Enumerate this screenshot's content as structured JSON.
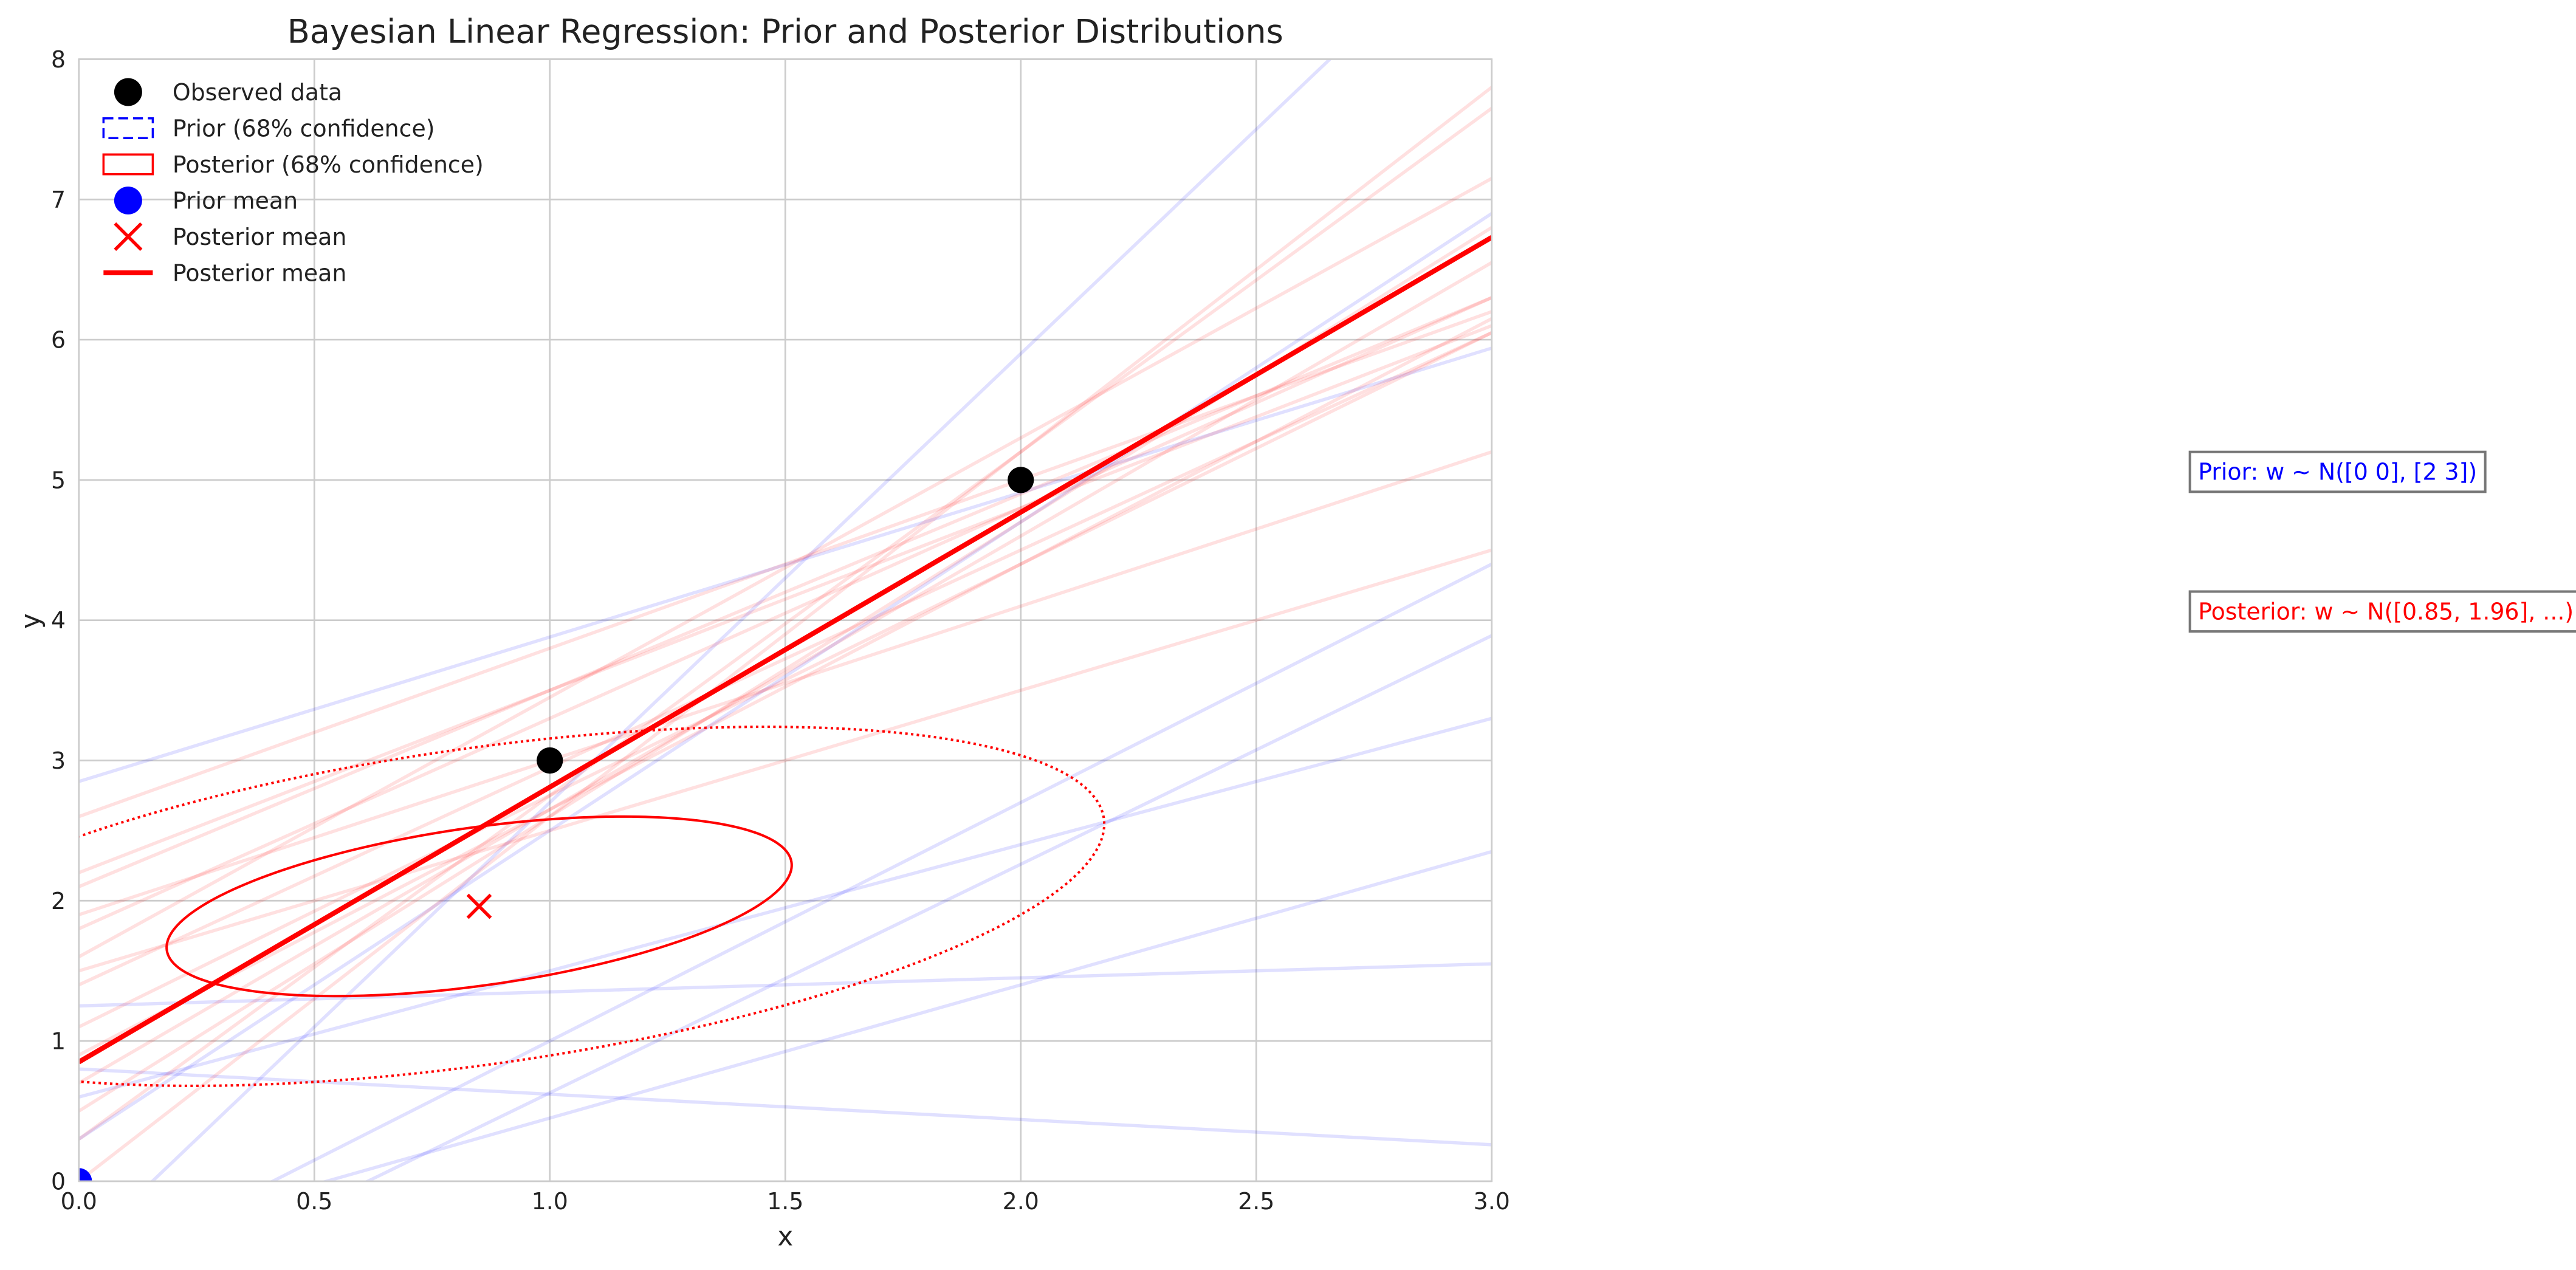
{
  "chart_data": {
    "type": "scatter",
    "title": "Bayesian Linear Regression: Prior and Posterior Distributions",
    "x_label": "x",
    "y_label": "y",
    "xlim": [
      0,
      3
    ],
    "ylim": [
      0,
      8
    ],
    "xticks": [
      {
        "value": 0,
        "label": "0.0"
      },
      {
        "value": 0.5,
        "label": "0.5"
      },
      {
        "value": 1,
        "label": "1.0"
      },
      {
        "value": 1.5,
        "label": "1.5"
      },
      {
        "value": 2,
        "label": "2.0"
      },
      {
        "value": 2.5,
        "label": "2.5"
      },
      {
        "value": 3,
        "label": "3.0"
      }
    ],
    "yticks": [
      0,
      1,
      2,
      3,
      4,
      5,
      6,
      7,
      8
    ],
    "grid": true,
    "legend": "upper left",
    "series": [
      {
        "name": "Observed data",
        "color": "#000000",
        "marker": "circle",
        "x": [
          1,
          2
        ],
        "values": [
          3,
          5
        ]
      },
      {
        "name": "Prior mean",
        "color": "#0000ff",
        "marker": "circle",
        "x": [
          0
        ],
        "values": [
          0
        ]
      },
      {
        "name": "Posterior mean",
        "color": "#ff0000",
        "marker": "x",
        "x": [
          0.85
        ],
        "values": [
          1.96
        ]
      },
      {
        "name": "Posterior mean",
        "color": "#ff0000",
        "marker": "line",
        "x": [
          0,
          3
        ],
        "values": [
          0.85,
          6.73
        ]
      }
    ],
    "ellipses": [
      {
        "name": "Prior (68% confidence)",
        "color": "#0000ff",
        "style": "dashed",
        "center": [
          0,
          0
        ],
        "cov": [
          [
            2,
            0
          ],
          [
            0,
            3
          ]
        ],
        "n_std": 1
      },
      {
        "color": "#0000ff",
        "style": "dotted",
        "center": [
          0,
          0
        ],
        "cov": [
          [
            2,
            0
          ],
          [
            0,
            3
          ]
        ],
        "n_std": 2
      },
      {
        "name": "Posterior (68% confidence)",
        "color": "#ff0000",
        "style": "solid",
        "center": [
          0.85,
          1.96
        ],
        "cov": [
          [
            1.23,
            -0.66
          ],
          [
            -0.66,
            0.47
          ]
        ],
        "n_std": 1
      },
      {
        "color": "#ff0000",
        "style": "dotted",
        "center": [
          0.85,
          1.96
        ],
        "cov": [
          [
            1.23,
            -0.66
          ],
          [
            -0.66,
            0.47
          ]
        ],
        "n_std": 2
      }
    ],
    "sample_lines": [
      {
        "color": "#0000ff",
        "intercepts": [
          2.85,
          0.8,
          -0.5,
          -1,
          1.25,
          -0.5,
          0.6,
          -0.7,
          0.3
        ],
        "slopes": [
          1.03,
          -0.18,
          3.2,
          1.63,
          0.1,
          0.95,
          0.9,
          1.7,
          2.2
        ]
      },
      {
        "color": "#ff0000",
        "intercepts": [
          1.6,
          2.6,
          0.5,
          1.4,
          0.9,
          2.2,
          0.3,
          1.1,
          1.8,
          0.0,
          1.5,
          1.9,
          0.7,
          2.1
        ],
        "slopes": [
          1.85,
          1.2,
          2.1,
          1.55,
          1.75,
          1.3,
          2.45,
          1.65,
          1.5,
          2.6,
          1.0,
          1.1,
          1.95,
          1.4
        ]
      }
    ],
    "annotations": [
      {
        "text": "Prior: w ~ N([0 0], [2 3])",
        "color": "#0000ff"
      },
      {
        "text": "Posterior: w ~ N([0.85, 1.96], ...)",
        "color": "#ff0000"
      }
    ]
  }
}
